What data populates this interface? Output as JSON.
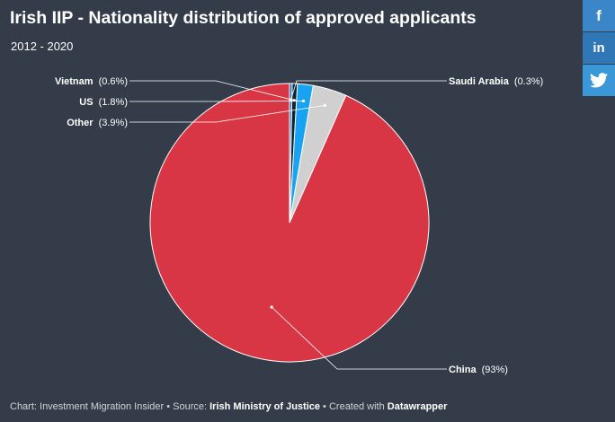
{
  "header": {
    "title": "Irish IIP - Nationality distribution of approved applicants",
    "subtitle": "2012 - 2020"
  },
  "share": {
    "facebook": "f",
    "linkedin": "in",
    "twitter_icon": "twitter-bird-icon"
  },
  "chart_data": {
    "type": "pie",
    "title": "Irish IIP - Nationality distribution of approved applicants",
    "subtitle": "2012 - 2020",
    "start_angle_deg": 0,
    "direction": "counterclockwise",
    "slices": [
      {
        "name": "China",
        "value": 93,
        "label_value": "(93%)",
        "color": "#d93645"
      },
      {
        "name": "Other",
        "value": 3.9,
        "label_value": "(3.9%)",
        "color": "#d0d0d0"
      },
      {
        "name": "US",
        "value": 1.8,
        "label_value": "(1.8%)",
        "color": "#18a2f2"
      },
      {
        "name": "Vietnam",
        "value": 0.6,
        "label_value": "(0.6%)",
        "color": "#0d2233"
      },
      {
        "name": "Saudi Arabia",
        "value": 0.3,
        "label_value": "(0.3%)",
        "color": "#1978b8"
      }
    ]
  },
  "footer": {
    "chart_prefix": "Chart: Investment Migration Insider • Source: ",
    "source": "Irish Ministry of Justice",
    "created_prefix": " • Created with ",
    "tool": "Datawrapper"
  }
}
